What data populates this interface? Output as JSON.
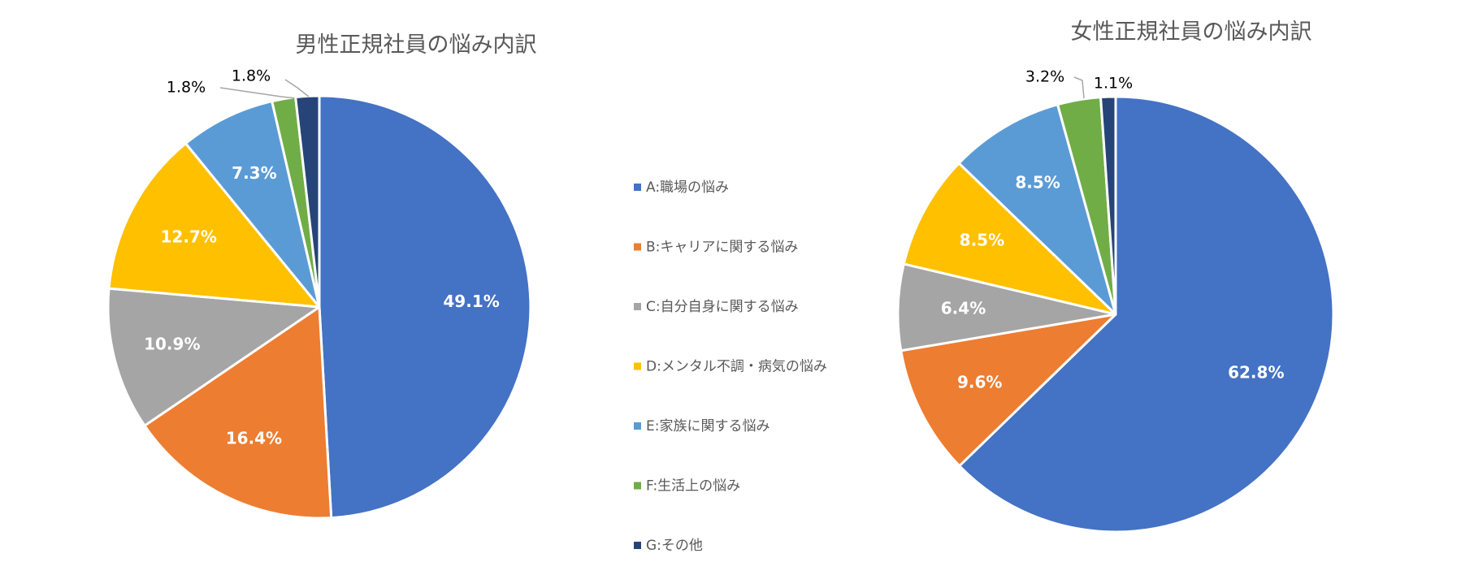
{
  "chart_data": [
    {
      "type": "pie",
      "title": "男性正規社員の悩み内訳",
      "categories": [
        "A:職場の悩み",
        "B:キャリアに関する悩み",
        "C:自分自身に関する悩み",
        "D:メンタル不調・病気の悩み",
        "E:家族に関する悩み",
        "F:生活上の悩み",
        "G:その他"
      ],
      "values": [
        49.1,
        16.4,
        10.9,
        12.7,
        7.3,
        1.8,
        1.8
      ],
      "labels": [
        "49.1%",
        "16.4%",
        "10.9%",
        "12.7%",
        "7.3%",
        "1.8%",
        "1.8%"
      ]
    },
    {
      "type": "pie",
      "title": "女性正規社員の悩み内訳",
      "categories": [
        "A:職場の悩み",
        "B:キャリアに関する悩み",
        "C:自分自身に関する悩み",
        "D:メンタル不調・病気の悩み",
        "E:家族に関する悩み",
        "F:生活上の悩み",
        "G:その他"
      ],
      "values": [
        62.8,
        9.6,
        6.4,
        8.5,
        8.5,
        3.2,
        1.1
      ],
      "labels": [
        "62.8%",
        "9.6%",
        "6.4%",
        "8.5%",
        "8.5%",
        "3.2%",
        "1.1%"
      ]
    }
  ],
  "legend": {
    "position": "center",
    "items": [
      "A:職場の悩み",
      "B:キャリアに関する悩み",
      "C:自分自身に関する悩み",
      "D:メンタル不調・病気の悩み",
      "E:家族に関する悩み",
      "F:生活上の悩み",
      "G:その他"
    ]
  },
  "colors": [
    "#4472C4",
    "#ED7D31",
    "#A5A5A5",
    "#FFC000",
    "#5B9BD5",
    "#70AD47",
    "#264478"
  ]
}
